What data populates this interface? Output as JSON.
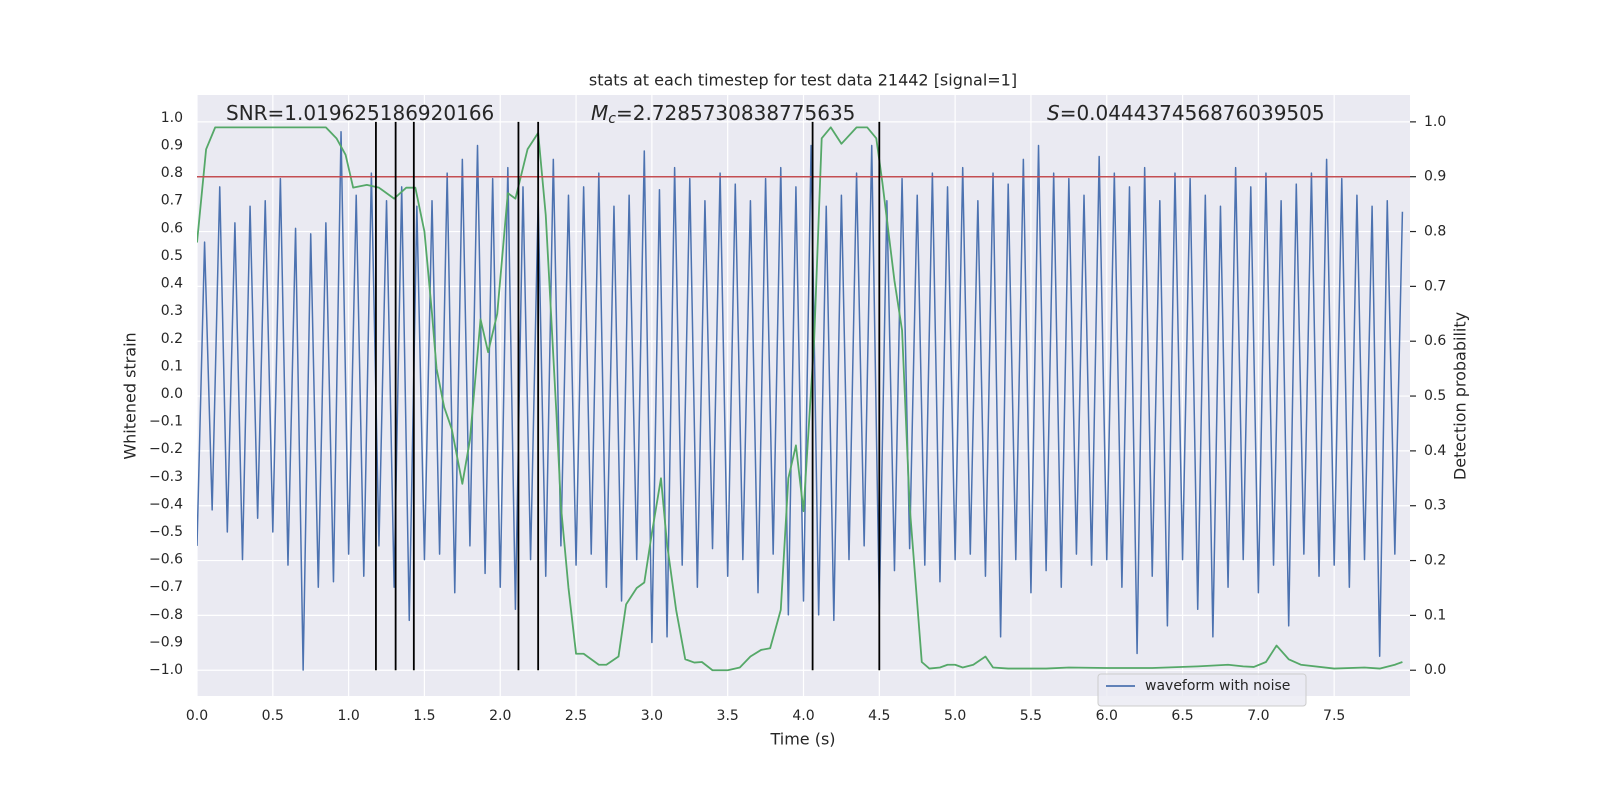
{
  "chart_data": {
    "type": "line",
    "title": "stats at each timestep for test data 21442 [signal=1]",
    "xlabel": "Time (s)",
    "ylabel": "Whitened strain",
    "y2label": "Detection probability",
    "annotations": [
      {
        "text": "SNR=1.019625186920166"
      },
      {
        "symbol": "M",
        "subscript": "c",
        "text": "=2.7285730838775635"
      },
      {
        "symbol": "S",
        "text": "=0.044437456876039505"
      }
    ],
    "xlim": [
      0,
      8
    ],
    "ylim": [
      -1.094,
      1.083
    ],
    "y2lim": [
      -0.047,
      1.049
    ],
    "xticks": [
      {
        "value": 0,
        "label": "0.0"
      },
      {
        "value": 0.5,
        "label": "0.5"
      },
      {
        "value": 1,
        "label": "1.0"
      },
      {
        "value": 1.5,
        "label": "1.5"
      },
      {
        "value": 2,
        "label": "2.0"
      },
      {
        "value": 2.5,
        "label": "2.5"
      },
      {
        "value": 3,
        "label": "3.0"
      },
      {
        "value": 3.5,
        "label": "3.5"
      },
      {
        "value": 4,
        "label": "4.0"
      },
      {
        "value": 4.5,
        "label": "4.5"
      },
      {
        "value": 5,
        "label": "5.0"
      },
      {
        "value": 5.5,
        "label": "5.5"
      },
      {
        "value": 6,
        "label": "6.0"
      },
      {
        "value": 6.5,
        "label": "6.5"
      },
      {
        "value": 7,
        "label": "7.0"
      },
      {
        "value": 7.5,
        "label": "7.5"
      }
    ],
    "yticks": [
      {
        "value": 1,
        "label": "1.0"
      },
      {
        "value": 0.9,
        "label": "0.9"
      },
      {
        "value": 0.8,
        "label": "0.8"
      },
      {
        "value": 0.7,
        "label": "0.7"
      },
      {
        "value": 0.6,
        "label": "0.6"
      },
      {
        "value": 0.5,
        "label": "0.5"
      },
      {
        "value": 0.4,
        "label": "0.4"
      },
      {
        "value": 0.3,
        "label": "0.3"
      },
      {
        "value": 0.2,
        "label": "0.2"
      },
      {
        "value": 0.1,
        "label": "0.1"
      },
      {
        "value": 0,
        "label": "0.0"
      },
      {
        "value": -0.1,
        "label": "−0.1"
      },
      {
        "value": -0.2,
        "label": "−0.2"
      },
      {
        "value": -0.3,
        "label": "−0.3"
      },
      {
        "value": -0.4,
        "label": "−0.4"
      },
      {
        "value": -0.5,
        "label": "−0.5"
      },
      {
        "value": -0.6,
        "label": "−0.6"
      },
      {
        "value": -0.7,
        "label": "−0.7"
      },
      {
        "value": -0.8,
        "label": "−0.8"
      },
      {
        "value": -0.9,
        "label": "−0.9"
      },
      {
        "value": -1,
        "label": "−1.0"
      }
    ],
    "y2ticks": [
      {
        "value": 0,
        "label": "0.0"
      },
      {
        "value": 0.1,
        "label": "0.1"
      },
      {
        "value": 0.2,
        "label": "0.2"
      },
      {
        "value": 0.3,
        "label": "0.3"
      },
      {
        "value": 0.4,
        "label": "0.4"
      },
      {
        "value": 0.5,
        "label": "0.5"
      },
      {
        "value": 0.6,
        "label": "0.6"
      },
      {
        "value": 0.7,
        "label": "0.7"
      },
      {
        "value": 0.8,
        "label": "0.8"
      },
      {
        "value": 0.9,
        "label": "0.9"
      },
      {
        "value": 1,
        "label": "1.0"
      }
    ],
    "grid": true,
    "legend": "lower right",
    "series": [
      {
        "name": "waveform with noise",
        "color": "#4c72b0",
        "x": [
          0,
          0.05,
          0.1,
          0.15,
          0.2,
          0.25,
          0.3,
          0.35,
          0.4,
          0.45,
          0.5,
          0.55,
          0.6,
          0.65,
          0.7,
          0.75,
          0.8,
          0.85,
          0.9,
          0.95,
          1,
          1.05,
          1.1,
          1.15,
          1.2,
          1.25,
          1.3,
          1.35,
          1.4,
          1.45,
          1.5,
          1.55,
          1.6,
          1.65,
          1.7,
          1.75,
          1.8,
          1.85,
          1.9,
          1.95,
          2,
          2.05,
          2.1,
          2.15,
          2.2,
          2.25,
          2.3,
          2.35,
          2.4,
          2.45,
          2.5,
          2.55,
          2.6,
          2.65,
          2.7,
          2.75,
          2.8,
          2.85,
          2.9,
          2.95,
          3,
          3.05,
          3.1,
          3.15,
          3.2,
          3.25,
          3.3,
          3.35,
          3.4,
          3.45,
          3.5,
          3.55,
          3.6,
          3.65,
          3.7,
          3.75,
          3.8,
          3.85,
          3.9,
          3.95,
          4,
          4.05,
          4.1,
          4.15,
          4.2,
          4.25,
          4.3,
          4.35,
          4.4,
          4.45,
          4.5,
          4.55,
          4.6,
          4.65,
          4.7,
          4.75,
          4.8,
          4.85,
          4.9,
          4.95,
          5,
          5.05,
          5.1,
          5.15,
          5.2,
          5.25,
          5.3,
          5.35,
          5.4,
          5.45,
          5.5,
          5.55,
          5.6,
          5.65,
          5.7,
          5.75,
          5.8,
          5.85,
          5.9,
          5.95,
          6,
          6.05,
          6.1,
          6.15,
          6.2,
          6.25,
          6.3,
          6.35,
          6.4,
          6.45,
          6.5,
          6.55,
          6.6,
          6.65,
          6.7,
          6.75,
          6.8,
          6.85,
          6.9,
          6.95,
          7,
          7.05,
          7.1,
          7.15,
          7.2,
          7.25,
          7.3,
          7.35,
          7.4,
          7.45,
          7.5,
          7.55,
          7.6,
          7.65,
          7.7,
          7.75,
          7.8,
          7.85,
          7.9,
          7.95
        ],
        "values": [
          -0.55,
          0.55,
          -0.42,
          0.75,
          -0.5,
          0.62,
          -0.6,
          0.68,
          -0.45,
          0.7,
          -0.5,
          0.78,
          -0.62,
          0.6,
          -1.0,
          0.58,
          -0.7,
          0.62,
          -0.68,
          0.95,
          -0.58,
          0.72,
          -0.66,
          0.8,
          -0.55,
          0.7,
          -0.7,
          0.75,
          -0.82,
          0.68,
          -0.6,
          0.7,
          -0.58,
          0.8,
          -0.72,
          0.85,
          -0.55,
          0.9,
          -0.65,
          0.78,
          -0.7,
          0.82,
          -0.78,
          0.75,
          -0.6,
          0.7,
          -0.66,
          0.85,
          -0.55,
          0.72,
          -0.62,
          0.75,
          -0.58,
          0.8,
          -0.7,
          0.68,
          -0.75,
          0.72,
          -0.6,
          0.88,
          -0.9,
          0.74,
          -0.88,
          0.82,
          -0.62,
          0.78,
          -0.7,
          0.7,
          -0.56,
          0.8,
          -0.66,
          0.76,
          -0.6,
          0.7,
          -0.72,
          0.78,
          -0.58,
          0.82,
          -0.8,
          0.75,
          -0.75,
          0.9,
          -0.8,
          0.68,
          -0.82,
          0.72,
          -0.6,
          0.8,
          -0.55,
          0.9,
          -0.78,
          0.7,
          -0.64,
          0.78,
          -0.56,
          0.72,
          -0.62,
          0.8,
          -0.68,
          0.75,
          -0.6,
          0.82,
          -0.58,
          0.7,
          -0.66,
          0.8,
          -0.88,
          0.76,
          -0.6,
          0.85,
          -0.72,
          0.9,
          -0.64,
          0.8,
          -0.7,
          0.78,
          -0.58,
          0.72,
          -0.62,
          0.86,
          -0.6,
          0.8,
          -0.7,
          0.75,
          -0.94,
          0.82,
          -0.66,
          0.7,
          -0.84,
          0.8,
          -0.6,
          0.78,
          -0.78,
          0.72,
          -0.88,
          0.68,
          -0.7,
          0.82,
          -0.6,
          0.75,
          -0.72,
          0.8,
          -0.62,
          0.7,
          -0.84,
          0.76,
          -0.58,
          0.8,
          -0.66,
          0.85,
          -0.62,
          0.78,
          -0.7,
          0.72,
          -0.6,
          0.68,
          -0.95,
          0.7,
          -0.58,
          0.66
        ]
      },
      {
        "color": "#55a868",
        "axis": "y2",
        "x": [
          0,
          0.06,
          0.12,
          0.2,
          0.3,
          0.5,
          0.7,
          0.85,
          0.92,
          0.98,
          1.03,
          1.12,
          1.2,
          1.3,
          1.38,
          1.44,
          1.5,
          1.55,
          1.58,
          1.63,
          1.68,
          1.75,
          1.8,
          1.87,
          1.92,
          1.98,
          2.05,
          2.1,
          2.18,
          2.25,
          2.3,
          2.37,
          2.4,
          2.45,
          2.5,
          2.55,
          2.65,
          2.7,
          2.78,
          2.83,
          2.9,
          2.95,
          3.0,
          3.06,
          3.1,
          3.16,
          3.22,
          3.28,
          3.33,
          3.4,
          3.5,
          3.58,
          3.65,
          3.72,
          3.78,
          3.85,
          3.9,
          3.95,
          4.0,
          4.07,
          4.12,
          4.18,
          4.25,
          4.35,
          4.42,
          4.48,
          4.52,
          4.6,
          4.65,
          4.7,
          4.78,
          4.83,
          4.9,
          4.95,
          5.0,
          5.05,
          5.12,
          5.2,
          5.25,
          5.35,
          5.6,
          5.75,
          6.0,
          6.3,
          6.6,
          6.8,
          6.9,
          6.97,
          7.05,
          7.12,
          7.2,
          7.28,
          7.5,
          7.7,
          7.8,
          7.9,
          7.95
        ],
        "values": [
          0.78,
          0.95,
          0.99,
          0.99,
          0.99,
          0.99,
          0.99,
          0.99,
          0.97,
          0.94,
          0.88,
          0.885,
          0.88,
          0.86,
          0.88,
          0.88,
          0.8,
          0.65,
          0.55,
          0.48,
          0.44,
          0.34,
          0.42,
          0.64,
          0.58,
          0.65,
          0.87,
          0.86,
          0.95,
          0.98,
          0.83,
          0.47,
          0.3,
          0.15,
          0.03,
          0.03,
          0.01,
          0.01,
          0.025,
          0.12,
          0.15,
          0.16,
          0.25,
          0.35,
          0.23,
          0.11,
          0.02,
          0.014,
          0.015,
          0.0,
          0.0,
          0.005,
          0.025,
          0.037,
          0.04,
          0.11,
          0.35,
          0.41,
          0.29,
          0.6,
          0.97,
          0.99,
          0.96,
          0.99,
          0.99,
          0.97,
          0.89,
          0.71,
          0.62,
          0.3,
          0.015,
          0.003,
          0.005,
          0.01,
          0.01,
          0.005,
          0.01,
          0.025,
          0.005,
          0.003,
          0.003,
          0.005,
          0.004,
          0.004,
          0.007,
          0.01,
          0.007,
          0.006,
          0.015,
          0.045,
          0.02,
          0.01,
          0.003,
          0.005,
          0.003,
          0.01,
          0.015
        ]
      }
    ],
    "hlines": [
      {
        "value": 0.9,
        "axis": "y2",
        "color": "#c44e52"
      }
    ],
    "vlines": {
      "x": [
        1.18,
        1.31,
        1.43,
        2.12,
        2.25,
        4.06,
        4.5
      ],
      "axis": "y2",
      "range": [
        0,
        1
      ],
      "color": "#000000"
    }
  }
}
